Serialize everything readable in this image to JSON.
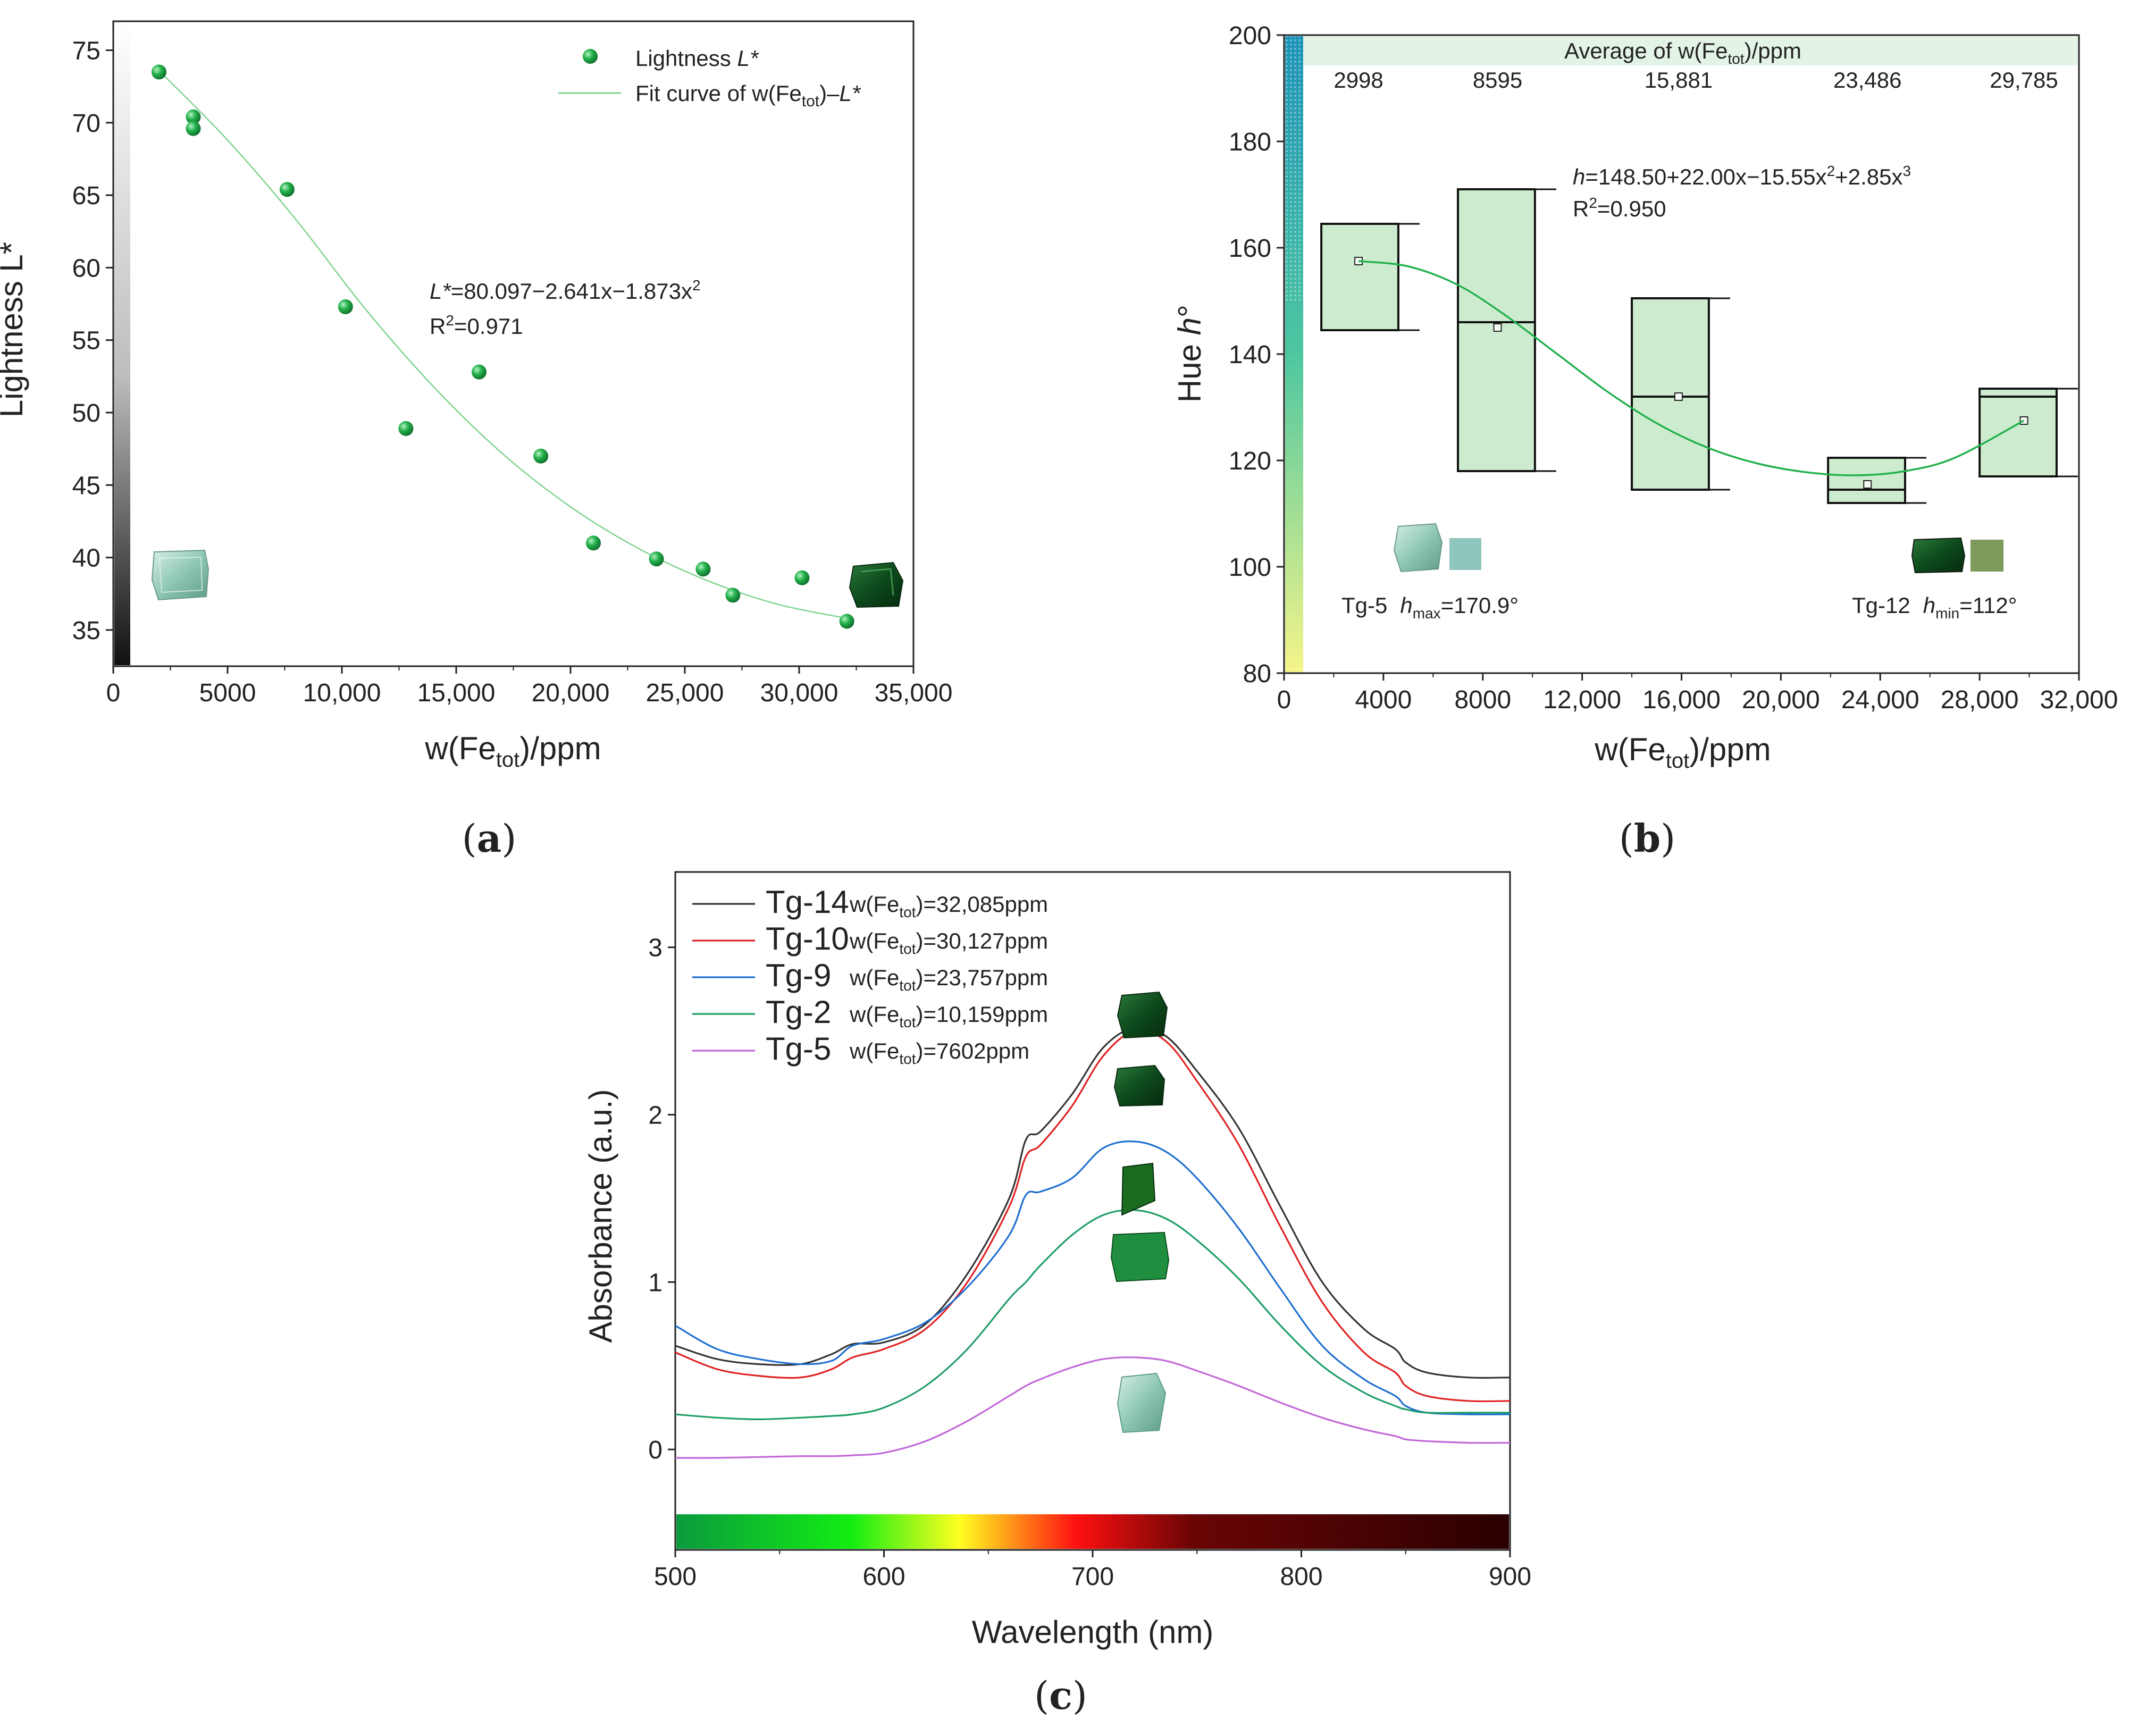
{
  "colors": {
    "green": "#21b04b",
    "fit_green": "#7fd490",
    "box_fill": "#cdeccf",
    "box_stroke": "#111111"
  },
  "chart_data": [
    {
      "id": "a",
      "type": "scatter",
      "caption": "a",
      "xlabel": "w(Fe",
      "xlabel_sub": "tot",
      "xlabel_tail": ")/ppm",
      "ylabel": "Lightness L*",
      "xlim": [
        0,
        35000
      ],
      "ylim": [
        32.5,
        77
      ],
      "xticks": [
        0,
        5000,
        10000,
        15000,
        20000,
        25000,
        30000,
        35000
      ],
      "xtick_labels": [
        "0",
        "5000",
        "10,000",
        "15,000",
        "20,000",
        "25,000",
        "30,000",
        "35,000"
      ],
      "yticks": [
        35,
        40,
        45,
        50,
        55,
        60,
        65,
        70,
        75
      ],
      "ytick_labels": [
        "35",
        "40",
        "45",
        "50",
        "55",
        "60",
        "65",
        "70",
        "75"
      ],
      "points": [
        [
          2000,
          73.5
        ],
        [
          3500,
          70.4
        ],
        [
          3500,
          69.6
        ],
        [
          7602,
          65.4
        ],
        [
          10159,
          57.3
        ],
        [
          12800,
          48.9
        ],
        [
          16000,
          52.8
        ],
        [
          18700,
          47.0
        ],
        [
          21000,
          41.0
        ],
        [
          23757,
          39.9
        ],
        [
          25800,
          39.2
        ],
        [
          27100,
          37.4
        ],
        [
          30127,
          38.6
        ],
        [
          32085,
          35.6
        ]
      ],
      "fit": {
        "x_start": 2000,
        "x_end": 32085,
        "samples": [
          [
            2000,
            73.6
          ],
          [
            5000,
            68.8
          ],
          [
            8000,
            63.3
          ],
          [
            11000,
            57.2
          ],
          [
            14000,
            51.8
          ],
          [
            17000,
            47.2
          ],
          [
            20000,
            43.5
          ],
          [
            23000,
            40.6
          ],
          [
            26000,
            38.4
          ],
          [
            29000,
            36.8
          ],
          [
            32085,
            35.8
          ]
        ]
      },
      "legend": [
        {
          "label": "Lightness ",
          "label_italic": "L*",
          "marker": "point"
        },
        {
          "label": "Fit curve of w(Fe",
          "label_sub": "tot",
          "label_tail": ")–",
          "label_italic": "L*",
          "marker": "line"
        }
      ],
      "equation": {
        "line1_italic": "L*",
        "line1": "=80.097−2.641x−1.873x",
        "line1_sup": "2",
        "line2": "R",
        "line2_sup": "2",
        "line2_tail": "=0.971"
      }
    },
    {
      "id": "b",
      "type": "box",
      "caption": "b",
      "xlabel": "w(Fe",
      "xlabel_sub": "tot",
      "xlabel_tail": ")/ppm",
      "ylabel": "Hue h°",
      "ylabel_plain": "Hue ",
      "ylabel_italic": "h",
      "ylabel_tail": "°",
      "xlim": [
        0,
        32000
      ],
      "ylim": [
        80,
        200
      ],
      "xticks": [
        0,
        4000,
        8000,
        12000,
        16000,
        20000,
        24000,
        28000,
        32000
      ],
      "xtick_labels": [
        "0",
        "4000",
        "8000",
        "12,000",
        "16,000",
        "20,000",
        "24,000",
        "28,000",
        "32,000"
      ],
      "yticks": [
        80,
        100,
        120,
        140,
        160,
        180,
        200
      ],
      "ytick_labels": [
        "80",
        "100",
        "120",
        "140",
        "160",
        "180",
        "200"
      ],
      "boxes": [
        {
          "x": 2998,
          "x0": 1500,
          "x1": 4600,
          "q1": 144.5,
          "median": 164.5,
          "q3": 164.5,
          "mean": 157.5,
          "whisker_low": 144.5,
          "whisker_high": 164.5
        },
        {
          "x": 8595,
          "x0": 7000,
          "x1": 10100,
          "q1": 118.0,
          "median": 146.0,
          "q3": 171.0,
          "mean": 145.0,
          "whisker_low": 118.0,
          "whisker_high": 171.0
        },
        {
          "x": 15881,
          "x0": 14000,
          "x1": 17100,
          "q1": 114.5,
          "median": 132.0,
          "q3": 150.5,
          "mean": 132.0,
          "whisker_low": 114.5,
          "whisker_high": 150.5
        },
        {
          "x": 23486,
          "x0": 21900,
          "x1": 25000,
          "q1": 112.0,
          "median": 114.5,
          "q3": 120.5,
          "mean": 115.5,
          "whisker_low": 112.0,
          "whisker_high": 120.5
        },
        {
          "x": 29785,
          "x0": 28000,
          "x1": 31100,
          "q1": 117.0,
          "median": 132.0,
          "q3": 133.5,
          "mean": 127.5,
          "whisker_low": 117.0,
          "whisker_high": 133.5
        }
      ],
      "fit_samples": [
        [
          2998,
          157.5
        ],
        [
          5000,
          156.5
        ],
        [
          7000,
          153.0
        ],
        [
          9000,
          147.0
        ],
        [
          11000,
          140.0
        ],
        [
          13000,
          133.0
        ],
        [
          15000,
          127.0
        ],
        [
          17000,
          122.5
        ],
        [
          19000,
          119.5
        ],
        [
          21000,
          117.8
        ],
        [
          23000,
          117.2
        ],
        [
          25000,
          118.0
        ],
        [
          27000,
          120.5
        ],
        [
          29785,
          127.5
        ]
      ],
      "header": {
        "title": "Average of w(Fe",
        "title_sub": "tot",
        "title_tail": ")/ppm",
        "values": [
          "2998",
          "8595",
          "15,881",
          "23,486",
          "29,785"
        ]
      },
      "equation": {
        "line1_italic": "h",
        "line1": "=148.50+22.00x−15.55x",
        "line1_sup": "2",
        "line1_b": "+2.85x",
        "line1_sup2": "3",
        "line2": "R",
        "line2_sup": "2",
        "line2_tail": "=0.950"
      },
      "annotations": [
        {
          "sample": "Tg-5",
          "symbol": "h",
          "sub": "max",
          "value": "=170.9°",
          "swatch": "#8fc5bc"
        },
        {
          "sample": "Tg-12",
          "symbol": "h",
          "sub": "min",
          "value": "=112°",
          "swatch": "#7e9a5c"
        }
      ]
    },
    {
      "id": "c",
      "type": "line",
      "caption": "c",
      "xlabel": "Wavelength (nm)",
      "ylabel": "Absorbance (a.u.)",
      "xlim": [
        500,
        900
      ],
      "ylim": [
        -0.6,
        3.45
      ],
      "xticks": [
        500,
        600,
        700,
        800,
        900
      ],
      "xtick_labels": [
        "500",
        "600",
        "700",
        "800",
        "900"
      ],
      "yticks": [
        0,
        1,
        2,
        3
      ],
      "ytick_labels": [
        "0",
        "1",
        "2",
        "3"
      ],
      "x": [
        500,
        520,
        540,
        560,
        575,
        585,
        600,
        620,
        640,
        660,
        668,
        675,
        690,
        705,
        720,
        735,
        750,
        770,
        790,
        810,
        830,
        845,
        850,
        860,
        880,
        900
      ],
      "series": [
        {
          "name": "Tg-14",
          "legend_fe": "=32,085ppm",
          "color": "#333333",
          "values": [
            0.62,
            0.54,
            0.51,
            0.51,
            0.57,
            0.63,
            0.64,
            0.75,
            1.05,
            1.5,
            1.85,
            1.9,
            2.12,
            2.4,
            2.52,
            2.47,
            2.26,
            1.92,
            1.45,
            1.0,
            0.72,
            0.6,
            0.52,
            0.46,
            0.43,
            0.43
          ]
        },
        {
          "name": "Tg-10",
          "legend_fe": "=30,127ppm",
          "color": "#e02020",
          "values": [
            0.58,
            0.48,
            0.44,
            0.43,
            0.48,
            0.55,
            0.6,
            0.72,
            1.0,
            1.45,
            1.75,
            1.82,
            2.05,
            2.35,
            2.5,
            2.44,
            2.2,
            1.82,
            1.33,
            0.88,
            0.58,
            0.46,
            0.38,
            0.32,
            0.29,
            0.29
          ]
        },
        {
          "name": "Tg-9",
          "legend_fe": "=23,757ppm",
          "color": "#1f6fd0",
          "values": [
            0.74,
            0.6,
            0.54,
            0.51,
            0.53,
            0.62,
            0.66,
            0.76,
            0.97,
            1.28,
            1.52,
            1.54,
            1.62,
            1.8,
            1.84,
            1.78,
            1.62,
            1.32,
            0.96,
            0.62,
            0.42,
            0.32,
            0.26,
            0.22,
            0.21,
            0.21
          ]
        },
        {
          "name": "Tg-2",
          "legend_fe": "=10,159ppm",
          "color": "#1e9e66",
          "values": [
            0.21,
            0.19,
            0.18,
            0.19,
            0.2,
            0.21,
            0.25,
            0.38,
            0.6,
            0.9,
            1.0,
            1.1,
            1.28,
            1.4,
            1.43,
            1.38,
            1.25,
            1.02,
            0.74,
            0.5,
            0.34,
            0.26,
            0.24,
            0.22,
            0.22,
            0.22
          ]
        },
        {
          "name": "Tg-5",
          "legend_fe": "=7602ppm",
          "color": "#c267d8",
          "values": [
            -0.05,
            -0.05,
            -0.045,
            -0.04,
            -0.04,
            -0.035,
            -0.02,
            0.05,
            0.17,
            0.32,
            0.38,
            0.42,
            0.49,
            0.54,
            0.55,
            0.53,
            0.47,
            0.38,
            0.28,
            0.19,
            0.12,
            0.08,
            0.06,
            0.05,
            0.04,
            0.04
          ]
        }
      ],
      "legend_prefix": "w(Fe",
      "legend_sub": "tot",
      "legend_tail": ")"
    }
  ]
}
